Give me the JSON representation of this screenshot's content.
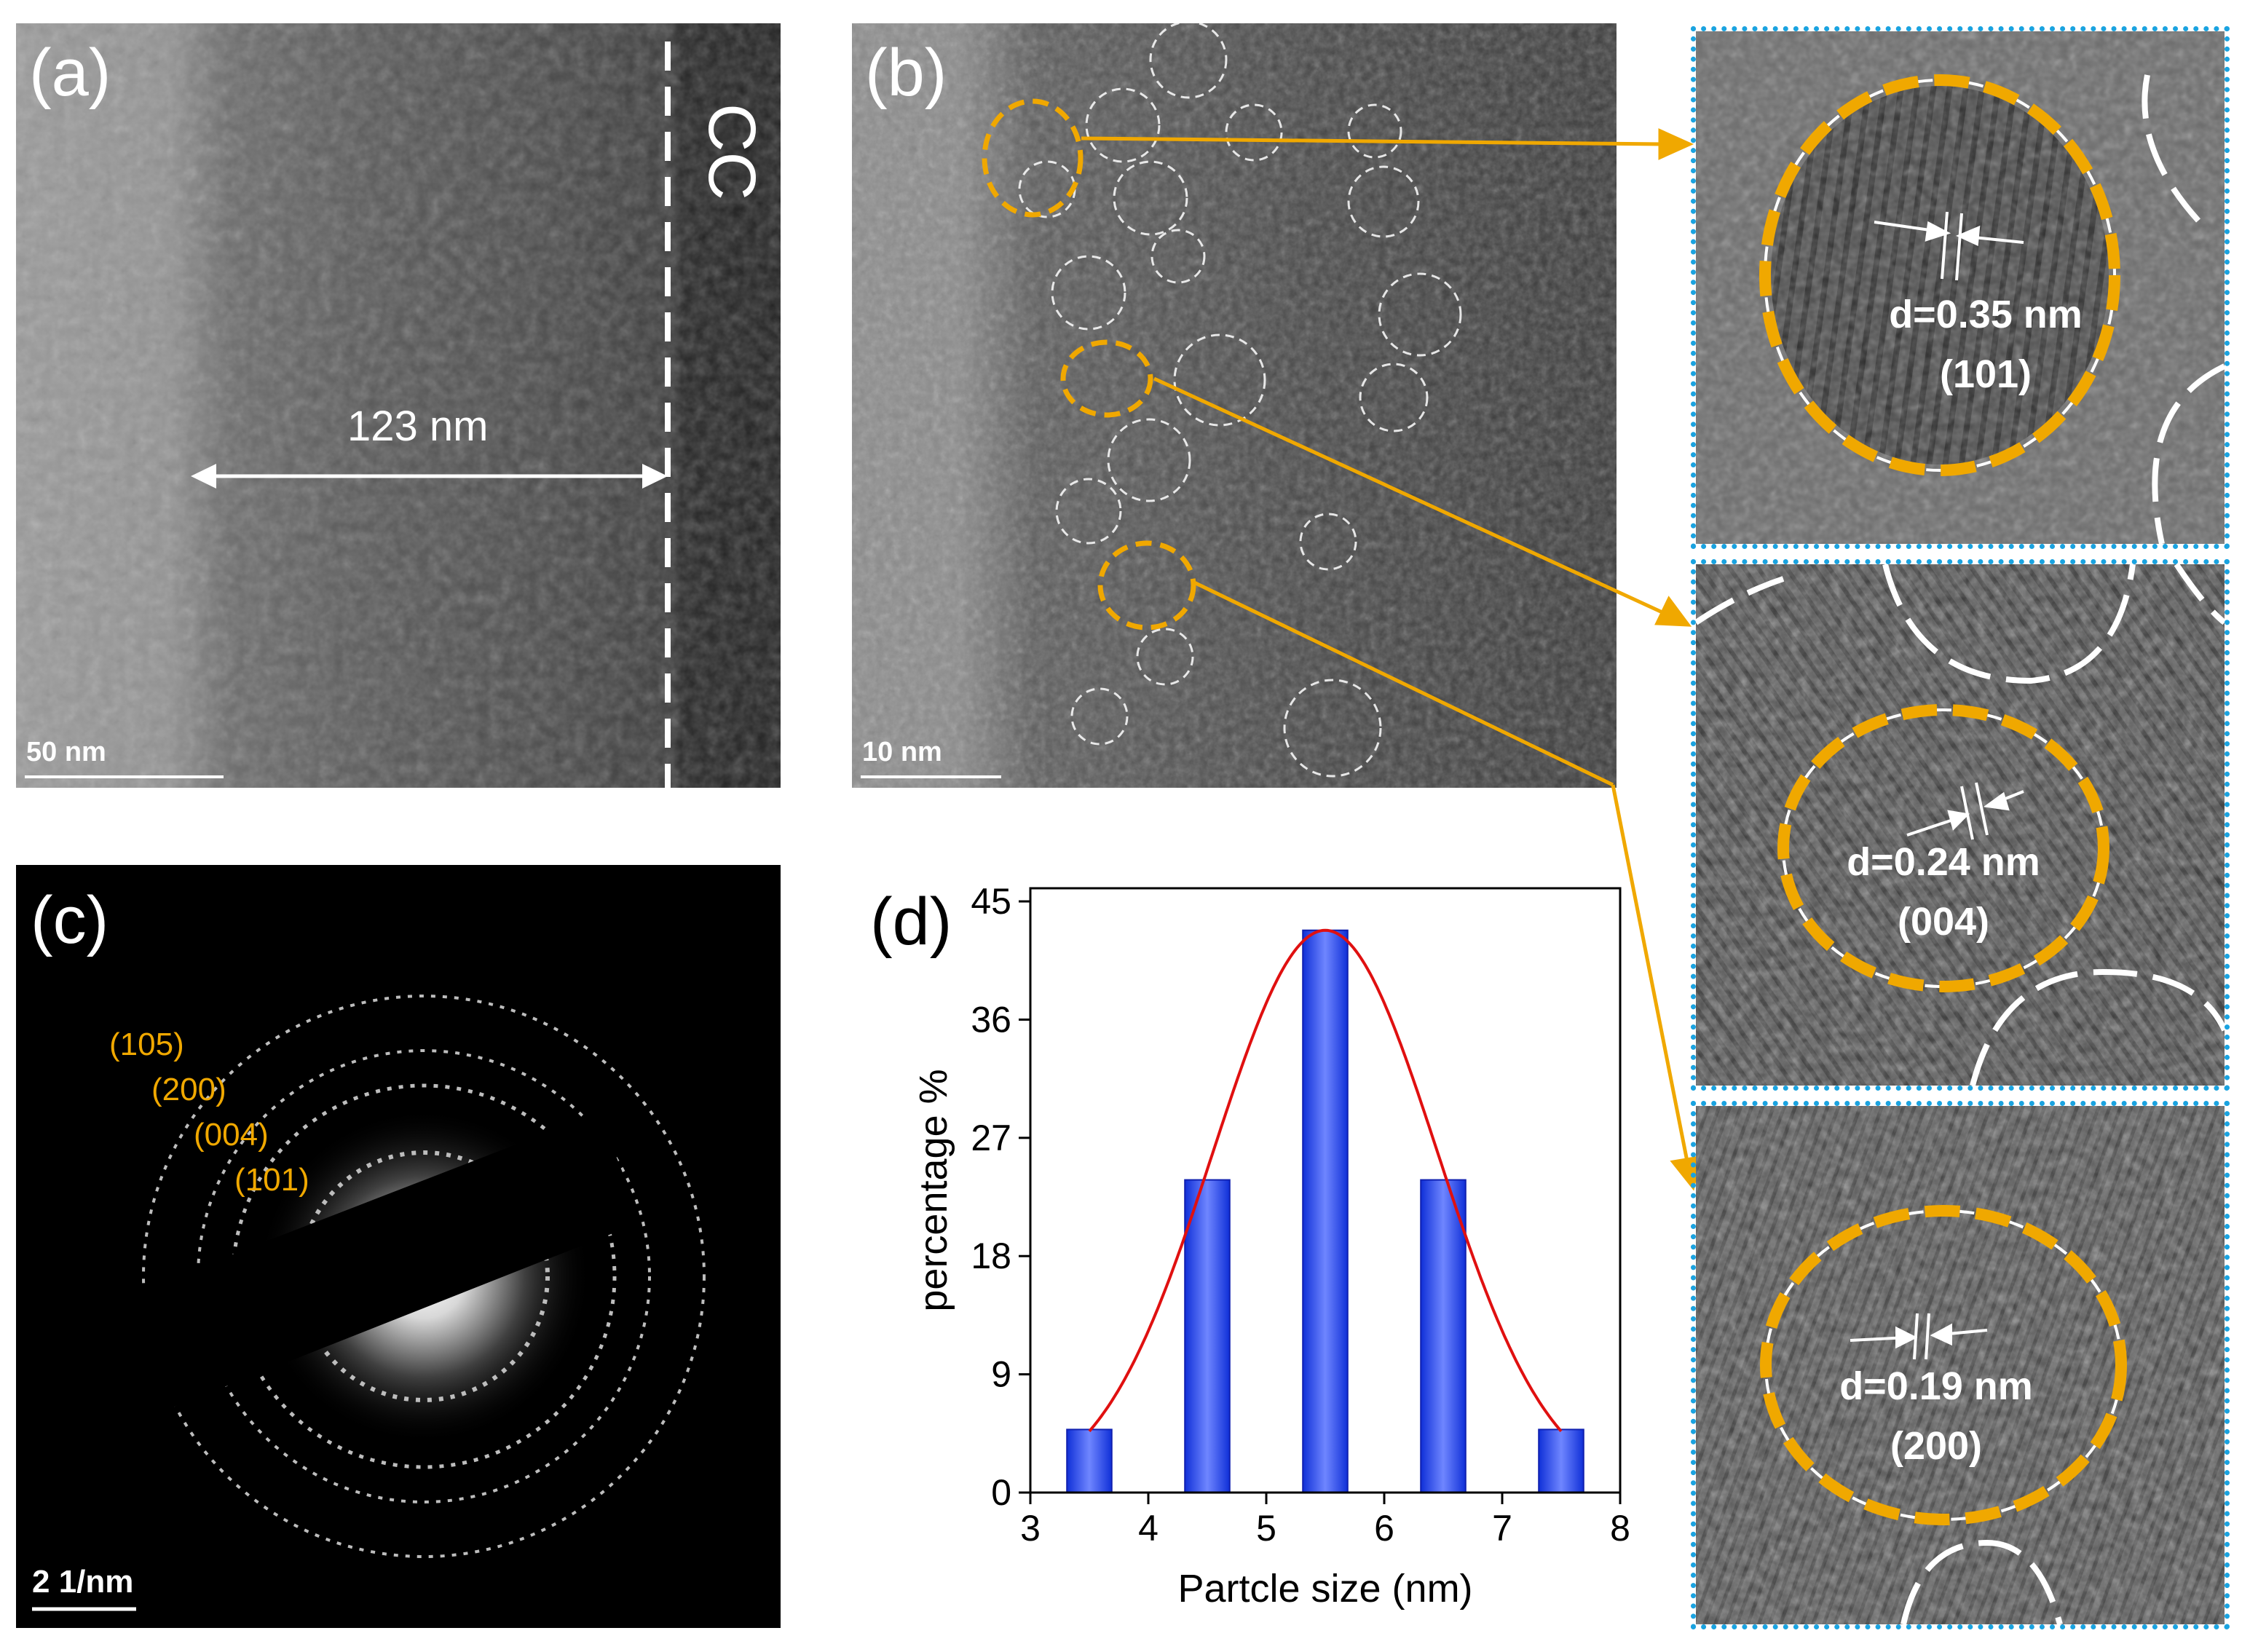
{
  "panels": {
    "a": {
      "label": "(a)",
      "scale_bar": "50 nm",
      "thickness": "123 nm",
      "cc_label": "CC"
    },
    "b": {
      "label": "(b)",
      "scale_bar": "10 nm"
    },
    "c": {
      "label": "(c)",
      "scale_bar": "2 1/nm",
      "rings": [
        "(105)",
        "(200)",
        "(004)",
        "(101)"
      ]
    },
    "d": {
      "label": "(d)"
    }
  },
  "insets": [
    {
      "spacing": "d=0.35 nm",
      "plane": "(101)"
    },
    {
      "spacing": "d=0.24 nm",
      "plane": "(004)"
    },
    {
      "spacing": "d=0.19 nm",
      "plane": "(200)"
    }
  ],
  "colors": {
    "highlight": "#f0a800",
    "inset_border": "#1aa3e0",
    "bar": "#1f3cf0",
    "fit": "#e01010",
    "ring_label": "#f0a800"
  },
  "chart_data": {
    "type": "bar",
    "xlabel": "Partcle size (nm)",
    "ylabel": "percentage %",
    "xlim": [
      3,
      8
    ],
    "ylim": [
      0,
      46
    ],
    "xticks": [
      3,
      4,
      5,
      6,
      7,
      8
    ],
    "yticks": [
      0,
      9,
      18,
      27,
      36,
      45
    ],
    "x": [
      3.5,
      4.5,
      5.5,
      6.5,
      7.5
    ],
    "values": [
      4.8,
      23.8,
      42.8,
      23.8,
      4.8
    ],
    "bar_width": 0.38,
    "fit": {
      "type": "gaussian",
      "center": 5.5,
      "sigma": 0.95,
      "amplitude": 42.8,
      "range": [
        3.5,
        7.5
      ]
    }
  }
}
